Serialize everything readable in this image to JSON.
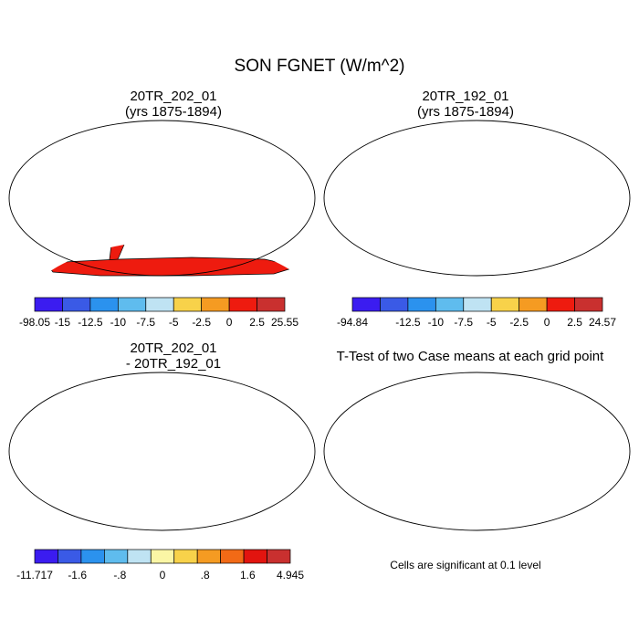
{
  "title": "SON FGNET (W/m^2)",
  "panels": [
    {
      "title_line1": "20TR_202_01",
      "title_line2": "(yrs 1875-1894)",
      "colorbar": {
        "labels": [
          "-98.05",
          "-15",
          "-12.5",
          "-10",
          "-7.5",
          "-5",
          "-2.5",
          "0",
          "2.5",
          "25.55"
        ],
        "colors": [
          "#3b1cf0",
          "#3a5ae6",
          "#2b92ee",
          "#5fbcee",
          "#bfe3f3",
          "#f8d24a",
          "#f59b22",
          "#ee1b0f",
          "#c9302f"
        ]
      }
    },
    {
      "title_line1": "20TR_192_01",
      "title_line2": "(yrs 1875-1894)",
      "colorbar": {
        "labels": [
          "-94.84",
          "",
          "-12.5",
          "-10",
          "-7.5",
          "-5",
          "-2.5",
          "0",
          "2.5",
          "24.57"
        ],
        "colors": [
          "#3b1cf0",
          "#3a5ae6",
          "#2b92ee",
          "#5fbcee",
          "#bfe3f3",
          "#f8d24a",
          "#f59b22",
          "#ee1b0f",
          "#c9302f"
        ]
      }
    },
    {
      "title_line1": "20TR_202_01",
      "title_line2": "- 20TR_192_01",
      "colorbar": {
        "labels": [
          "-11.717",
          "-1.6",
          "-.8",
          "0",
          ".8",
          "1.6",
          "4.945"
        ],
        "colors": [
          "#3b1cf0",
          "#3a5ae6",
          "#2b92ee",
          "#5fbcee",
          "#bfe3f3",
          "#fbf6a5",
          "#f8d24a",
          "#f59b22",
          "#f26a16",
          "#e2140f",
          "#c9302f"
        ]
      }
    },
    {
      "title": "T-Test of two Case means at each grid point",
      "note": "Cells are significant at 0.1 level",
      "significance_color": "#ee1b0f"
    }
  ]
}
